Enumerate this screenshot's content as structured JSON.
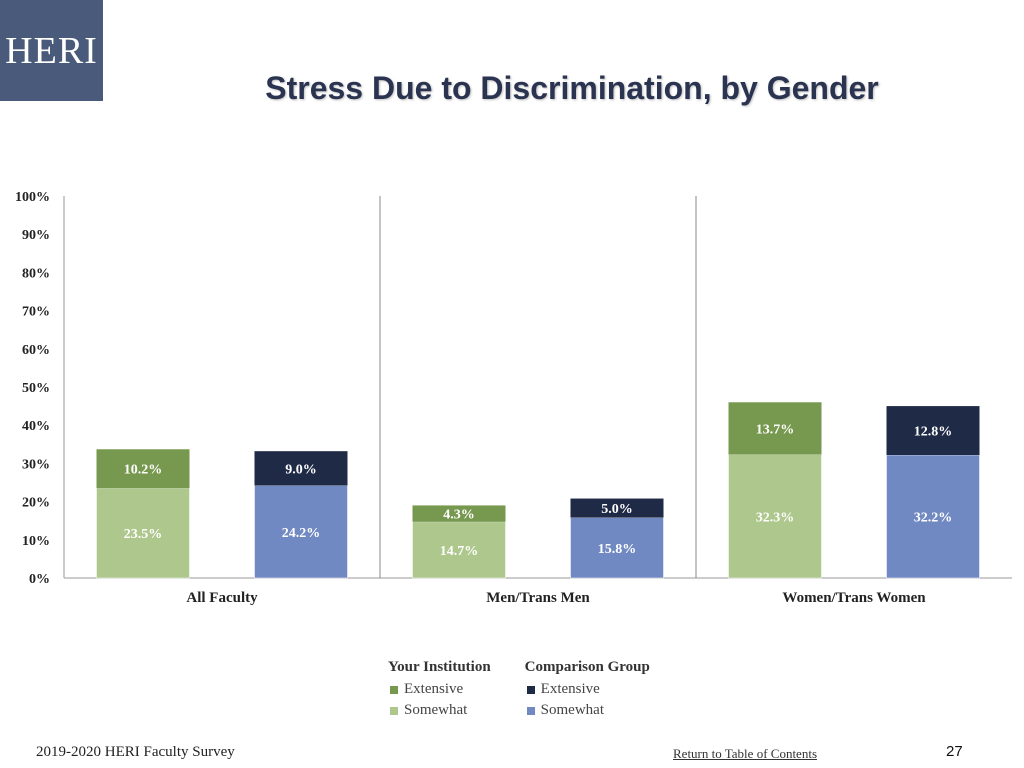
{
  "logo": {
    "text": "HERI"
  },
  "title": "Stress Due to Discrimination, by Gender",
  "colors": {
    "inst_extensive": "#77994f",
    "inst_somewhat": "#adc78c",
    "comp_extensive": "#1f2a47",
    "comp_somewhat": "#7089c2"
  },
  "chart_data": {
    "type": "bar",
    "stacked": true,
    "ylim": [
      0,
      100
    ],
    "yticks": [
      "0%",
      "10%",
      "20%",
      "30%",
      "40%",
      "50%",
      "60%",
      "70%",
      "80%",
      "90%",
      "100%"
    ],
    "groups": [
      {
        "label": "All Faculty",
        "bars": [
          {
            "series": "Your Institution",
            "somewhat": 23.5,
            "extensive": 10.2,
            "somewhat_label": "23.5%",
            "extensive_label": "10.2%"
          },
          {
            "series": "Comparison Group",
            "somewhat": 24.2,
            "extensive": 9.0,
            "somewhat_label": "24.2%",
            "extensive_label": "9.0%"
          }
        ]
      },
      {
        "label": "Men/Trans Men",
        "bars": [
          {
            "series": "Your Institution",
            "somewhat": 14.7,
            "extensive": 4.3,
            "somewhat_label": "14.7%",
            "extensive_label": "4.3%"
          },
          {
            "series": "Comparison Group",
            "somewhat": 15.8,
            "extensive": 5.0,
            "somewhat_label": "15.8%",
            "extensive_label": "5.0%"
          }
        ]
      },
      {
        "label": "Women/Trans Women",
        "bars": [
          {
            "series": "Your Institution",
            "somewhat": 32.3,
            "extensive": 13.7,
            "somewhat_label": "32.3%",
            "extensive_label": "13.7%"
          },
          {
            "series": "Comparison Group",
            "somewhat": 32.2,
            "extensive": 12.8,
            "somewhat_label": "32.2%",
            "extensive_label": "12.8%"
          }
        ]
      }
    ],
    "legend_placement": "bottom"
  },
  "legend": {
    "institution": {
      "title": "Your Institution",
      "extensive": "Extensive",
      "somewhat": "Somewhat"
    },
    "comparison": {
      "title": "Comparison Group",
      "extensive": "Extensive",
      "somewhat": "Somewhat"
    }
  },
  "footer": {
    "survey": "2019-2020 HERI Faculty Survey",
    "link": "Return to Table of Contents",
    "page": "27"
  }
}
